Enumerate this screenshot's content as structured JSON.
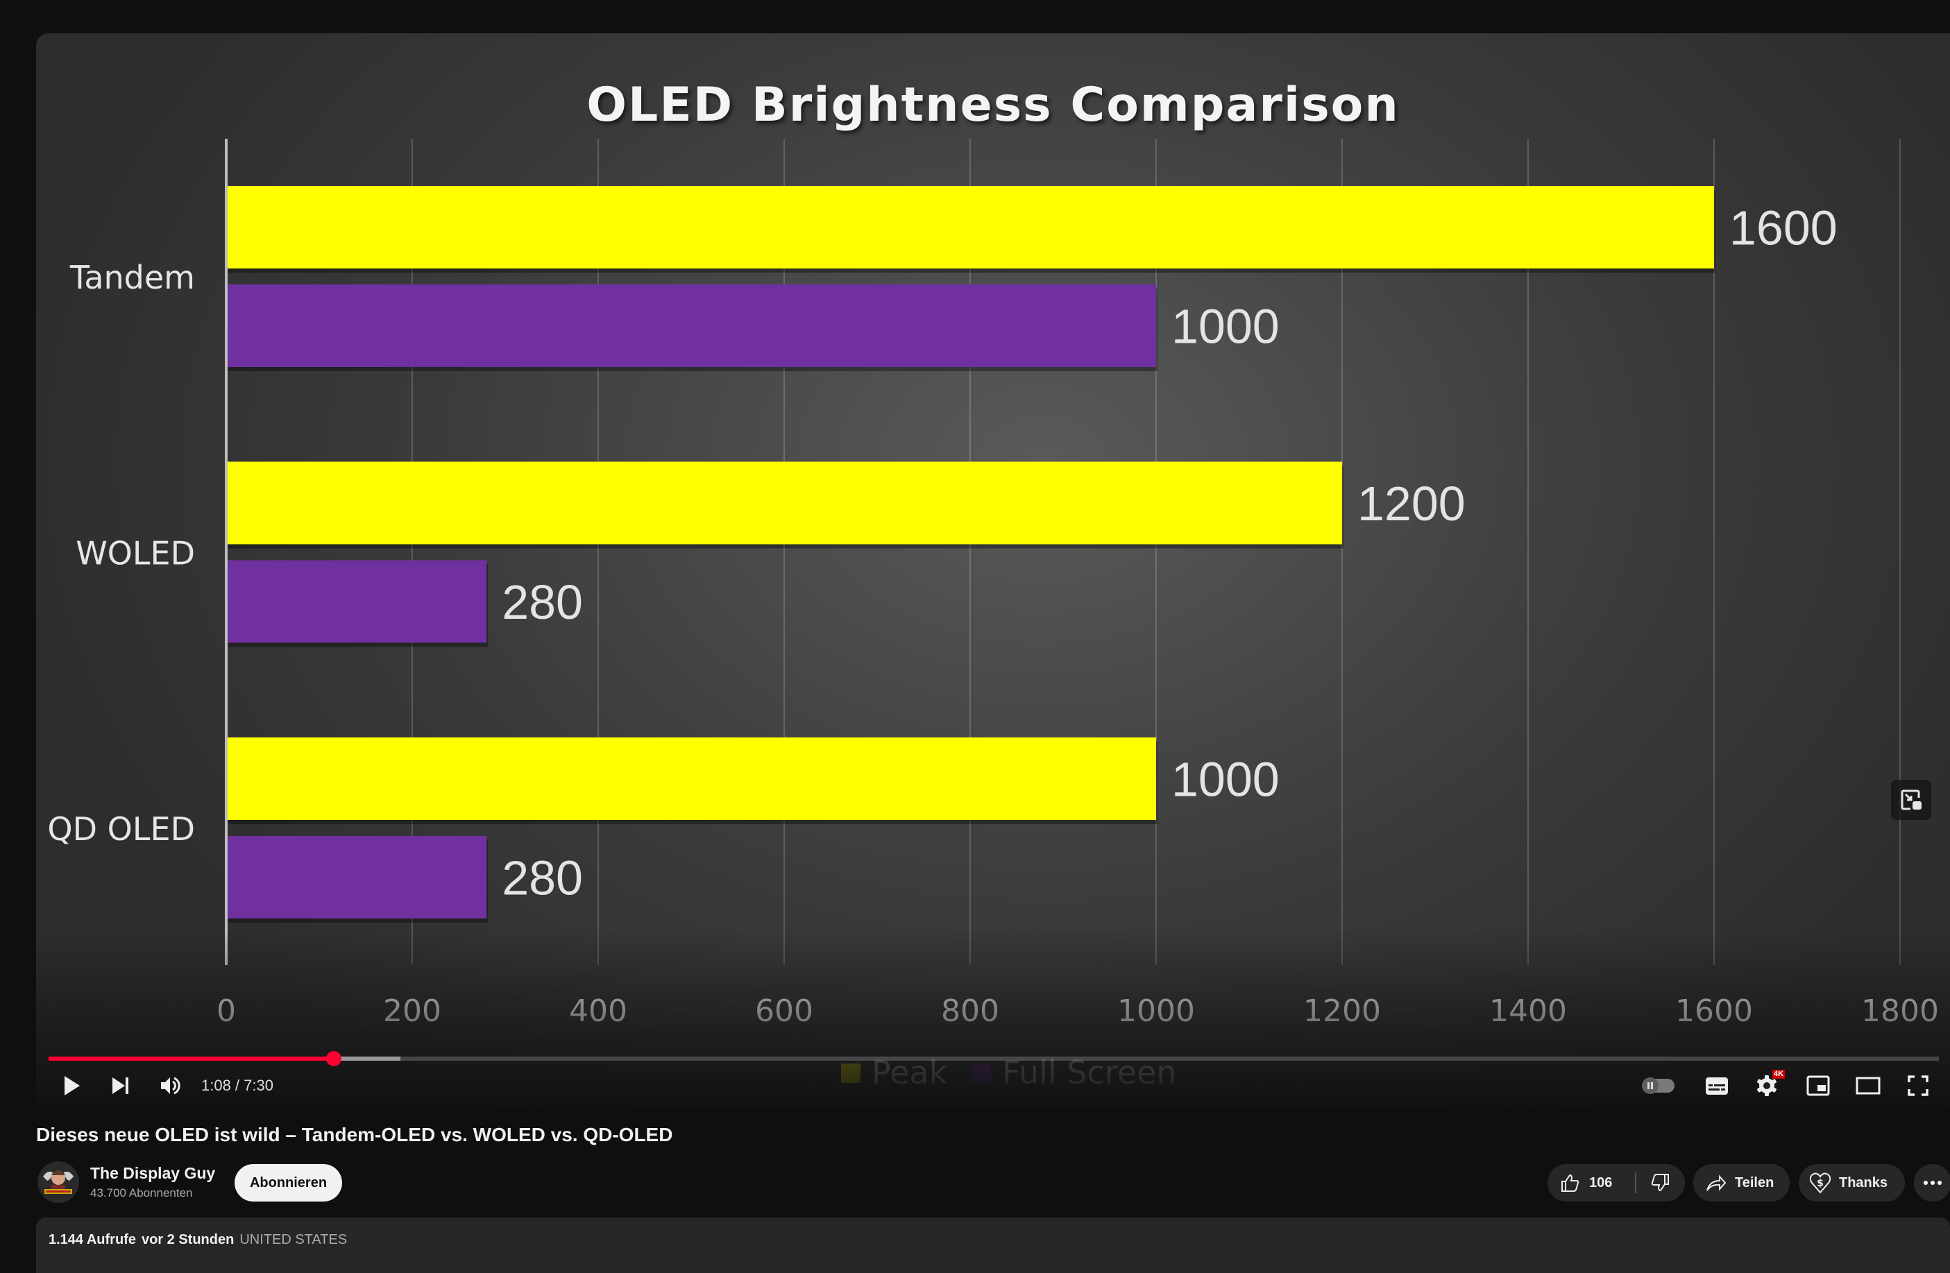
{
  "chart_data": {
    "type": "bar",
    "orientation": "horizontal",
    "title": "OLED Brightness Comparison",
    "categories": [
      "Tandem",
      "WOLED",
      "QD OLED"
    ],
    "series": [
      {
        "name": "Peak",
        "color": "#ffff00",
        "values": [
          1600,
          1200,
          1000
        ]
      },
      {
        "name": "Full Screen",
        "color": "#7030a0",
        "values": [
          1000,
          280,
          280
        ]
      }
    ],
    "xlim": [
      0,
      1800
    ],
    "xticks": [
      0,
      200,
      400,
      600,
      800,
      1000,
      1200,
      1400,
      1600,
      1800
    ],
    "xlabel": "",
    "ylabel": "",
    "grid": true,
    "legend": "bottom",
    "data_labels": true
  },
  "player": {
    "current_time": "1:08",
    "duration": "7:30",
    "time_display": "1:08 / 7:30",
    "progress_played": 0.151,
    "progress_buffered": 0.186,
    "quality_badge": "4K",
    "accent_color": "#ff0033"
  },
  "video": {
    "title": "Dieses neue OLED ist wild – Tandem-OLED vs. WOLED vs. QD-OLED",
    "channel_name": "The Display Guy",
    "subscribers": "43.700 Abonnenten",
    "subscribe_label": "Abonnieren",
    "likes": "106",
    "share_label": "Teilen",
    "thanks_label": "Thanks",
    "views": "1.144 Aufrufe",
    "published": "vor 2 Stunden",
    "location": "UNITED STATES"
  },
  "icons": {
    "play": "play-icon",
    "next": "next-icon",
    "volume": "volume-icon",
    "autoplay": "autoplay-toggle-icon",
    "subtitles": "subtitles-icon",
    "settings": "gear-icon",
    "miniplayer": "miniplayer-icon",
    "theater": "theater-icon",
    "fullscreen": "fullscreen-icon",
    "like": "thumbs-up-icon",
    "dislike": "thumbs-down-icon",
    "share": "share-icon",
    "thanks": "heart-dollar-icon",
    "more": "more-icon"
  }
}
